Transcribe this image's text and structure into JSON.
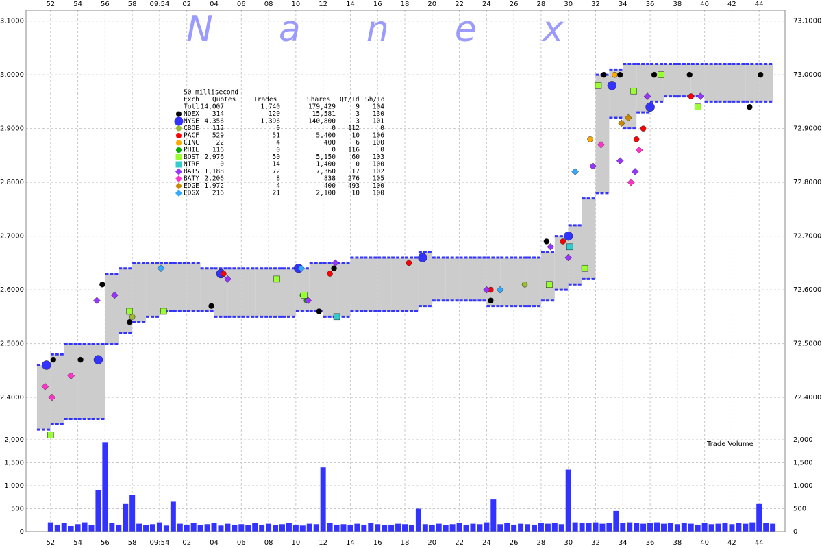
{
  "watermark": "Nanex",
  "volume_label": "Trade Volume",
  "legend": {
    "title": "50 millisecond",
    "columns": [
      "Exch",
      "Quotes",
      "Trades",
      "Shares",
      "Qt/Td",
      "Sh/Td"
    ],
    "total": {
      "name": "Totl",
      "stats": [
        "14,007",
        "1,740",
        "179,429",
        "9",
        "104"
      ]
    }
  },
  "chart_data": [
    {
      "type": "range",
      "band_color": "#cccccc",
      "edge_color": "#3333ff",
      "grid": true,
      "x": [
        -9,
        -8,
        -7,
        -6,
        -5,
        -4,
        -3,
        -2,
        -1,
        0,
        1,
        2,
        3,
        4,
        5,
        6,
        7,
        8,
        9,
        10,
        11,
        12,
        13,
        14,
        15,
        16,
        17,
        18,
        19,
        20,
        21,
        22,
        23,
        24,
        25,
        26,
        27,
        28,
        29,
        30,
        31,
        32,
        33,
        34,
        35,
        36,
        37,
        38,
        39,
        40,
        41,
        42,
        43,
        44
      ],
      "low": [
        72.34,
        72.35,
        72.36,
        72.36,
        72.36,
        72.5,
        72.52,
        72.54,
        72.55,
        72.56,
        72.56,
        72.56,
        72.56,
        72.55,
        72.55,
        72.55,
        72.55,
        72.55,
        72.55,
        72.56,
        72.56,
        72.55,
        72.55,
        72.56,
        72.56,
        72.56,
        72.56,
        72.56,
        72.57,
        72.58,
        72.58,
        72.58,
        72.58,
        72.57,
        72.57,
        72.57,
        72.57,
        72.58,
        72.6,
        72.61,
        72.62,
        72.78,
        72.92,
        72.9,
        72.93,
        72.95,
        72.96,
        72.96,
        72.96,
        72.95,
        72.95,
        72.95,
        72.95,
        72.95
      ],
      "high": [
        72.46,
        72.48,
        72.5,
        72.5,
        72.5,
        72.63,
        72.64,
        72.65,
        72.65,
        72.65,
        72.65,
        72.65,
        72.64,
        72.64,
        72.64,
        72.64,
        72.64,
        72.64,
        72.64,
        72.64,
        72.65,
        72.65,
        72.65,
        72.66,
        72.66,
        72.66,
        72.66,
        72.66,
        72.67,
        72.66,
        72.66,
        72.66,
        72.66,
        72.66,
        72.66,
        72.66,
        72.66,
        72.67,
        72.7,
        72.72,
        72.77,
        73.0,
        73.01,
        73.02,
        73.02,
        73.02,
        73.02,
        73.02,
        73.02,
        73.02,
        73.02,
        73.02,
        73.02,
        73.02
      ],
      "series": [
        {
          "name": "NQEX",
          "color": "#000000",
          "marker": "circle",
          "stats": [
            "314",
            "120",
            "15,581",
            "3",
            "130"
          ],
          "x": [
            -7.8,
            -5.8,
            -4.2,
            -2.2,
            3.8,
            11.7,
            12.8,
            24.3,
            28.4,
            32.6,
            33.8,
            36.3,
            38.9,
            43.3,
            44.1
          ],
          "values": [
            72.47,
            72.47,
            72.61,
            72.54,
            72.57,
            72.56,
            72.64,
            72.58,
            72.69,
            73.0,
            73.0,
            73.0,
            73.0,
            72.94,
            73.0
          ]
        },
        {
          "name": "NYSE",
          "color": "#3333ff",
          "marker": "large-circle",
          "stats": [
            "4,356",
            "1,396",
            "140,800",
            "3",
            "101"
          ],
          "x": [
            -8.3,
            -4.5,
            4.5,
            10.2,
            19.3,
            30.0,
            33.2,
            36.0
          ],
          "values": [
            72.46,
            72.47,
            72.63,
            72.64,
            72.66,
            72.7,
            72.98,
            72.94
          ]
        },
        {
          "name": "CBOE",
          "color": "#99bb33",
          "marker": "circle",
          "stats": [
            "112",
            "0",
            "0",
            "112",
            "0"
          ],
          "x": [
            -2.0,
            26.8
          ],
          "values": [
            72.55,
            72.61
          ]
        },
        {
          "name": "PACF",
          "color": "#ff0000",
          "marker": "circle",
          "stats": [
            "529",
            "51",
            "5,400",
            "10",
            "106"
          ],
          "x": [
            4.7,
            12.5,
            18.3,
            24.3,
            29.6,
            35.0,
            35.5,
            39.0
          ],
          "values": [
            72.63,
            72.63,
            72.65,
            72.6,
            72.69,
            72.88,
            72.9,
            72.96
          ]
        },
        {
          "name": "CINC",
          "color": "#ffaa00",
          "marker": "circle",
          "stats": [
            "22",
            "4",
            "400",
            "6",
            "100"
          ],
          "x": [
            31.6,
            33.4
          ],
          "values": [
            72.88,
            73.0
          ]
        },
        {
          "name": "PHIL",
          "color": "#00aa00",
          "marker": "circle",
          "stats": [
            "116",
            "0",
            "0",
            "116",
            "0"
          ],
          "x": [
            10.5,
            10.8
          ],
          "values": [
            72.59,
            72.58
          ]
        },
        {
          "name": "BOST",
          "color": "#99ff33",
          "marker": "square",
          "stats": [
            "2,976",
            "50",
            "5,150",
            "60",
            "103"
          ],
          "x": [
            -8.0,
            -2.2,
            0.3,
            8.6,
            10.6,
            28.6,
            31.2,
            32.2,
            34.8,
            36.8,
            39.5
          ],
          "values": [
            72.33,
            72.56,
            72.56,
            72.62,
            72.59,
            72.61,
            72.64,
            72.98,
            72.97,
            73.0,
            72.94
          ]
        },
        {
          "name": "NTRF",
          "color": "#33cccc",
          "marker": "square",
          "stats": [
            "0",
            "14",
            "1,400",
            "0",
            "100"
          ],
          "x": [
            13.0,
            30.1
          ],
          "values": [
            72.55,
            72.68
          ]
        },
        {
          "name": "BATS",
          "color": "#9933ff",
          "marker": "diamond",
          "stats": [
            "1,188",
            "72",
            "7,360",
            "17",
            "102"
          ],
          "x": [
            -4.6,
            -3.3,
            5.0,
            10.9,
            12.9,
            24.0,
            28.7,
            30.0,
            31.8,
            33.8,
            34.9,
            35.8,
            39.7
          ],
          "values": [
            72.58,
            72.59,
            72.62,
            72.58,
            72.65,
            72.6,
            72.68,
            72.66,
            72.83,
            72.84,
            72.82,
            72.96,
            72.96
          ]
        },
        {
          "name": "BATY",
          "color": "#ff33cc",
          "marker": "diamond",
          "stats": [
            "2,206",
            "8",
            "838",
            "276",
            "105"
          ],
          "x": [
            -8.4,
            -7.9,
            -6.5,
            32.4,
            34.6,
            35.2
          ],
          "values": [
            72.42,
            72.4,
            72.44,
            72.87,
            72.8,
            72.86
          ]
        },
        {
          "name": "EDGE",
          "color": "#cc8800",
          "marker": "diamond",
          "stats": [
            "1,972",
            "4",
            "400",
            "493",
            "100"
          ],
          "x": [
            33.9,
            34.4
          ],
          "values": [
            72.91,
            72.92
          ]
        },
        {
          "name": "EDGX",
          "color": "#33aaff",
          "marker": "diamond",
          "stats": [
            "216",
            "21",
            "2,100",
            "10",
            "100"
          ],
          "x": [
            0.1,
            10.4,
            25.0,
            30.5
          ],
          "values": [
            72.64,
            72.64,
            72.6,
            72.82
          ]
        }
      ],
      "xlim": [
        -9.8,
        45.9
      ],
      "xticks": [
        {
          "value": -8,
          "label": "52"
        },
        {
          "value": -6,
          "label": "54"
        },
        {
          "value": -4,
          "label": "56"
        },
        {
          "value": -2,
          "label": "58"
        },
        {
          "value": 0,
          "label": "09:54"
        },
        {
          "value": 2,
          "label": "02"
        },
        {
          "value": 4,
          "label": "04"
        },
        {
          "value": 6,
          "label": "06"
        },
        {
          "value": 8,
          "label": "08"
        },
        10,
        12,
        14,
        16,
        18,
        20,
        22,
        24,
        26,
        28,
        30,
        32,
        34,
        36,
        38,
        40,
        42,
        44
      ],
      "ylim": [
        72.33,
        73.12
      ],
      "yticks": [
        {
          "value": 72.4,
          "label": "72.4000"
        },
        {
          "value": 72.5,
          "label": "72.5000"
        },
        {
          "value": 72.6,
          "label": "72.6000"
        },
        {
          "value": 72.7,
          "label": "72.7000"
        },
        {
          "value": 72.8,
          "label": "72.8000"
        },
        {
          "value": 72.9,
          "label": "72.9000"
        },
        {
          "value": 73.0,
          "label": "73.0000"
        },
        {
          "value": 73.1,
          "label": "73.1000"
        }
      ]
    },
    {
      "type": "bar",
      "color": "#3333ff",
      "grid": true,
      "x": [
        -8,
        -7.5,
        -7,
        -6.5,
        -6,
        -5.5,
        -5,
        -4.5,
        -4,
        -3.5,
        -3,
        -2.5,
        -2,
        -1.5,
        -1,
        -0.5,
        0,
        0.5,
        1,
        1.5,
        2,
        2.5,
        3,
        3.5,
        4,
        4.5,
        5,
        5.5,
        6,
        6.5,
        7,
        7.5,
        8,
        8.5,
        9,
        9.5,
        10,
        10.5,
        11,
        11.5,
        12,
        12.5,
        13,
        13.5,
        14,
        14.5,
        15,
        15.5,
        16,
        16.5,
        17,
        17.5,
        18,
        18.5,
        19,
        19.5,
        20,
        20.5,
        21,
        21.5,
        22,
        22.5,
        23,
        23.5,
        24,
        24.5,
        25,
        25.5,
        26,
        26.5,
        27,
        27.5,
        28,
        28.5,
        29,
        29.5,
        30,
        30.5,
        31,
        31.5,
        32,
        32.5,
        33,
        33.5,
        34,
        34.5,
        35,
        35.5,
        36,
        36.5,
        37,
        37.5,
        38,
        38.5,
        39,
        39.5,
        40,
        40.5,
        41,
        41.5,
        42,
        42.5,
        43,
        43.5,
        44,
        44.5,
        45
      ],
      "values": [
        200,
        150,
        180,
        120,
        160,
        200,
        140,
        900,
        1950,
        180,
        150,
        600,
        800,
        170,
        140,
        160,
        200,
        130,
        650,
        170,
        150,
        180,
        140,
        160,
        190,
        130,
        170,
        150,
        160,
        140,
        180,
        150,
        170,
        140,
        160,
        190,
        150,
        130,
        170,
        160,
        1400,
        180,
        150,
        160,
        140,
        170,
        150,
        180,
        160,
        140,
        150,
        170,
        160,
        140,
        500,
        160,
        150,
        170,
        140,
        160,
        180,
        150,
        170,
        160,
        200,
        700,
        160,
        180,
        150,
        170,
        160,
        150,
        190,
        170,
        180,
        160,
        1350,
        200,
        180,
        190,
        200,
        170,
        190,
        450,
        180,
        200,
        190,
        170,
        180,
        200,
        170,
        180,
        160,
        190,
        170,
        150,
        180,
        160,
        170,
        190,
        160,
        180,
        170,
        200,
        600,
        180,
        170
      ],
      "ylim": [
        0,
        2000
      ],
      "yticks": [
        0,
        500,
        {
          "value": 1000,
          "label": "1,000"
        },
        {
          "value": 1500,
          "label": "1,500"
        },
        {
          "value": 2000,
          "label": "2,000"
        }
      ]
    }
  ]
}
